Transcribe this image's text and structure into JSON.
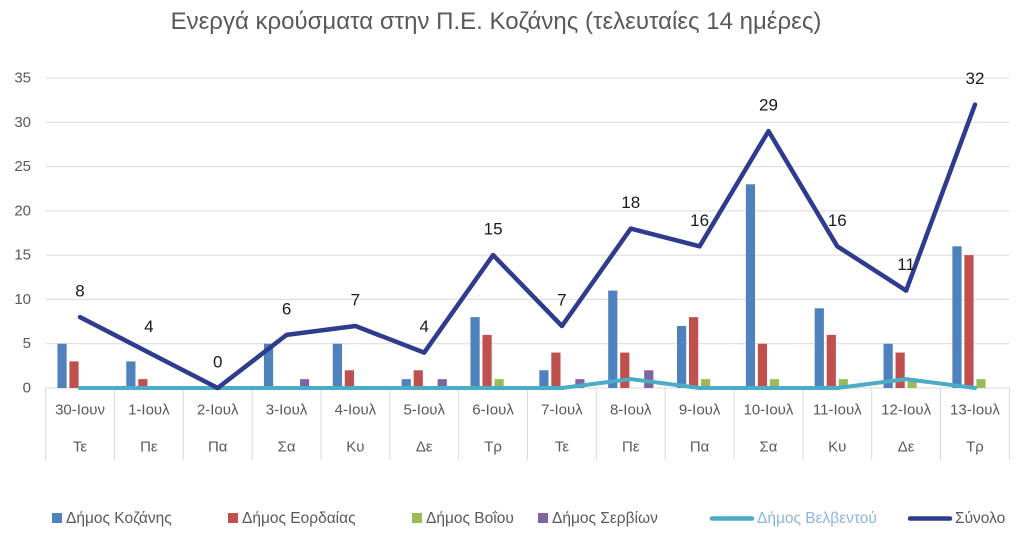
{
  "chart_data": {
    "type": "bar",
    "title": "Ενεργά κρούσματα στην Π.Ε. Κοζάνης (τελευταίες 14 ημέρες)",
    "categories": [
      "30-Ιουν",
      "1-Ιουλ",
      "2-Ιουλ",
      "3-Ιουλ",
      "4-Ιουλ",
      "5-Ιουλ",
      "6-Ιουλ",
      "7-Ιουλ",
      "8-Ιουλ",
      "9-Ιουλ",
      "10-Ιουλ",
      "11-Ιουλ",
      "12-Ιουλ",
      "13-Ιουλ"
    ],
    "category_days": [
      "Τε",
      "Πε",
      "Πα",
      "Σα",
      "Κυ",
      "Δε",
      "Τρ",
      "Τε",
      "Πε",
      "Πα",
      "Σα",
      "Κυ",
      "Δε",
      "Τρ"
    ],
    "ylim": [
      0,
      35
    ],
    "yticks": [
      0,
      5,
      10,
      15,
      20,
      25,
      30,
      35
    ],
    "grid": true,
    "legend_position": "bottom",
    "series": [
      {
        "name": "Δήμος Κοζάνης",
        "type": "bar",
        "color": "#4F81BD",
        "values": [
          5,
          3,
          0,
          5,
          5,
          1,
          8,
          2,
          11,
          7,
          23,
          9,
          5,
          16
        ]
      },
      {
        "name": "Δήμος Εορδαίας",
        "type": "bar",
        "color": "#C0504D",
        "values": [
          3,
          1,
          0,
          0,
          2,
          2,
          6,
          4,
          4,
          8,
          5,
          6,
          4,
          15
        ]
      },
      {
        "name": "Δήμος Βοΐου",
        "type": "bar",
        "color": "#9BBB59",
        "values": [
          0,
          0,
          0,
          0,
          0,
          0,
          1,
          0,
          0,
          1,
          1,
          1,
          1,
          1
        ]
      },
      {
        "name": "Δήμος Σερβίων",
        "type": "bar",
        "color": "#8064A2",
        "values": [
          0,
          0,
          0,
          1,
          0,
          1,
          0,
          1,
          2,
          0,
          0,
          0,
          0,
          0
        ]
      },
      {
        "name": "Δήμος Βελβεντού",
        "type": "line",
        "color": "#4BACC6",
        "legend_text_color": "#8FB3DC",
        "values": [
          0,
          0,
          0,
          0,
          0,
          0,
          0,
          0,
          1,
          0,
          0,
          0,
          1,
          0
        ]
      },
      {
        "name": "Σύνολο",
        "type": "line",
        "color": "#2E3B8E",
        "data_labels": true,
        "values": [
          8,
          4,
          0,
          6,
          7,
          4,
          15,
          7,
          18,
          16,
          29,
          16,
          11,
          32
        ]
      }
    ]
  }
}
